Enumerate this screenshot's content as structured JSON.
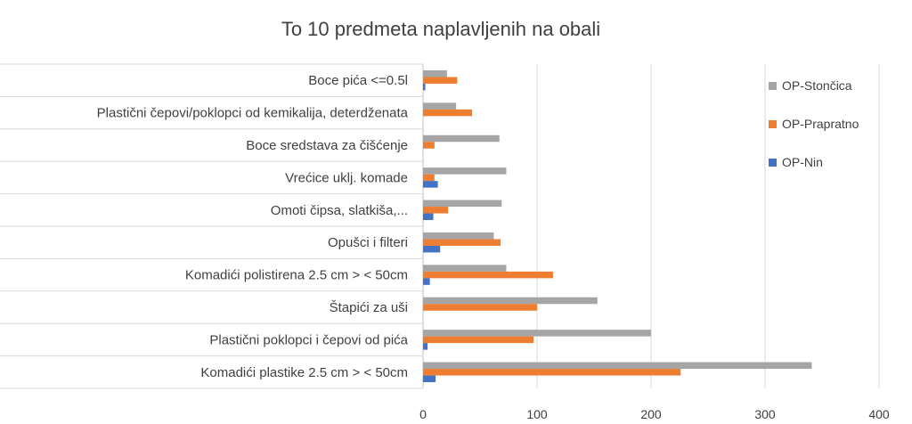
{
  "chart_data": {
    "type": "bar",
    "orientation": "horizontal",
    "title": "To 10 predmeta naplavljenih na obali",
    "xlabel": "",
    "ylabel": "",
    "xlim": [
      0,
      400
    ],
    "xticks": [
      "0",
      "100",
      "200",
      "300",
      "400"
    ],
    "grid": true,
    "legend_position": "right",
    "categories": [
      "Boce pića  <=0.5l",
      "Plastični čepovi/poklopci od kemikalija, deterdženata",
      "Boce sredstava za čišćenje",
      "Vrećice uklj. komade",
      "Omoti čipsa, slatkiša,...",
      "Opušci i filteri",
      "Komadići polistirena 2.5 cm > < 50cm",
      "Štapići za uši",
      "Plastični poklopci i čepovi od pića",
      "Komadići plastike 2.5 cm > < 50cm"
    ],
    "series": [
      {
        "name": "OP-Stončica",
        "color": "#a5a5a5",
        "values": [
          21,
          29,
          67,
          73,
          69,
          62,
          73,
          153,
          200,
          341
        ]
      },
      {
        "name": "OP-Prapratno",
        "color": "#ed7d31",
        "values": [
          30,
          43,
          10,
          10,
          22,
          68,
          114,
          100,
          97,
          226
        ]
      },
      {
        "name": "OP-Nin",
        "color": "#4472c4",
        "values": [
          2,
          0,
          0,
          13,
          9,
          15,
          6,
          0,
          4,
          11
        ]
      }
    ]
  }
}
